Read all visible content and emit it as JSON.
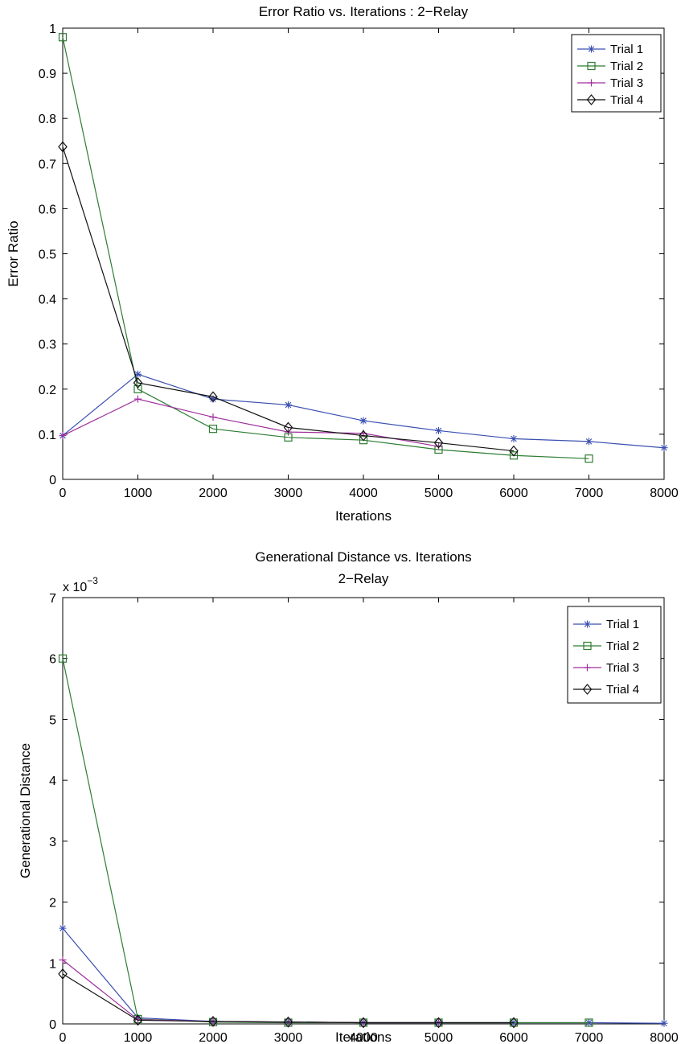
{
  "chart_data": [
    {
      "type": "line",
      "title": "Error Ratio vs. Iterations : 2−Relay",
      "xlabel": "Iterations",
      "ylabel": "Error Ratio",
      "xlim": [
        0,
        8000
      ],
      "ylim": [
        0,
        1
      ],
      "xticks": [
        0,
        1000,
        2000,
        3000,
        4000,
        5000,
        6000,
        7000,
        8000
      ],
      "yticks": [
        0,
        0.1,
        0.2,
        0.3,
        0.4,
        0.5,
        0.6,
        0.7,
        0.8,
        0.9,
        1
      ],
      "ytick_labels": [
        "0",
        "0.1",
        "0.2",
        "0.3",
        "0.4",
        "0.5",
        "0.6",
        "0.7",
        "0.8",
        "0.9",
        "1"
      ],
      "grid": false,
      "legend_position": "top-right",
      "series": [
        {
          "name": "Trial 1",
          "color": "#3a4fb0",
          "marker": "star",
          "x": [
            0,
            1000,
            2000,
            3000,
            4000,
            5000,
            6000,
            7000,
            8000
          ],
          "y": [
            0.097,
            0.233,
            0.178,
            0.165,
            0.13,
            0.108,
            0.09,
            0.084,
            0.07
          ]
        },
        {
          "name": "Trial 2",
          "color": "#2e7d32",
          "marker": "square",
          "x": [
            0,
            1000,
            2000,
            3000,
            4000,
            5000,
            6000,
            7000
          ],
          "y": [
            0.98,
            0.2,
            0.112,
            0.093,
            0.087,
            0.066,
            0.053,
            0.046
          ]
        },
        {
          "name": "Trial 3",
          "color": "#a0309e",
          "marker": "plus",
          "x": [
            0,
            1000,
            2000,
            3000,
            4000,
            5000
          ],
          "y": [
            0.097,
            0.178,
            0.138,
            0.105,
            0.102,
            0.073
          ]
        },
        {
          "name": "Trial 4",
          "color": "#111111",
          "marker": "diamond",
          "x": [
            0,
            1000,
            2000,
            3000,
            4000,
            5000,
            6000
          ],
          "y": [
            0.737,
            0.214,
            0.183,
            0.115,
            0.097,
            0.081,
            0.063
          ]
        }
      ]
    },
    {
      "type": "line",
      "title": "Generational Distance vs. Iterations",
      "subtitle": "2−Relay",
      "xlabel": "Iterations",
      "ylabel": "Generational Distance",
      "y_multiplier": "x 10",
      "y_exponent": "−3",
      "xlim": [
        0,
        8000
      ],
      "ylim": [
        0,
        0.007
      ],
      "xticks": [
        0,
        1000,
        2000,
        3000,
        4000,
        5000,
        6000,
        7000,
        8000
      ],
      "yticks": [
        0,
        0.001,
        0.002,
        0.003,
        0.004,
        0.005,
        0.006,
        0.007
      ],
      "ytick_labels": [
        "0",
        "1",
        "2",
        "3",
        "4",
        "5",
        "6",
        "7"
      ],
      "grid": false,
      "legend_position": "top-right",
      "series": [
        {
          "name": "Trial 1",
          "color": "#3a4fb0",
          "marker": "star",
          "x": [
            0,
            1000,
            2000,
            3000,
            4000,
            5000,
            6000,
            7000,
            8000
          ],
          "y": [
            0.00157,
            0.0001,
            4e-05,
            3e-05,
            2e-05,
            2e-05,
            2e-05,
            2e-05,
            1e-05
          ]
        },
        {
          "name": "Trial 2",
          "color": "#2e7d32",
          "marker": "square",
          "x": [
            0,
            1000,
            2000,
            3000,
            4000,
            5000,
            6000,
            7000
          ],
          "y": [
            0.006,
            8e-05,
            3e-05,
            2e-05,
            2e-05,
            2e-05,
            2e-05,
            2e-05
          ]
        },
        {
          "name": "Trial 3",
          "color": "#a0309e",
          "marker": "plus",
          "x": [
            0,
            1000,
            2000,
            3000,
            4000,
            5000
          ],
          "y": [
            0.00105,
            7e-05,
            4e-05,
            3e-05,
            2e-05,
            2e-05
          ]
        },
        {
          "name": "Trial 4",
          "color": "#111111",
          "marker": "diamond",
          "x": [
            0,
            1000,
            2000,
            3000,
            4000,
            5000,
            6000
          ],
          "y": [
            0.00082,
            6e-05,
            4e-05,
            3e-05,
            2e-05,
            2e-05,
            2e-05
          ]
        }
      ]
    }
  ]
}
